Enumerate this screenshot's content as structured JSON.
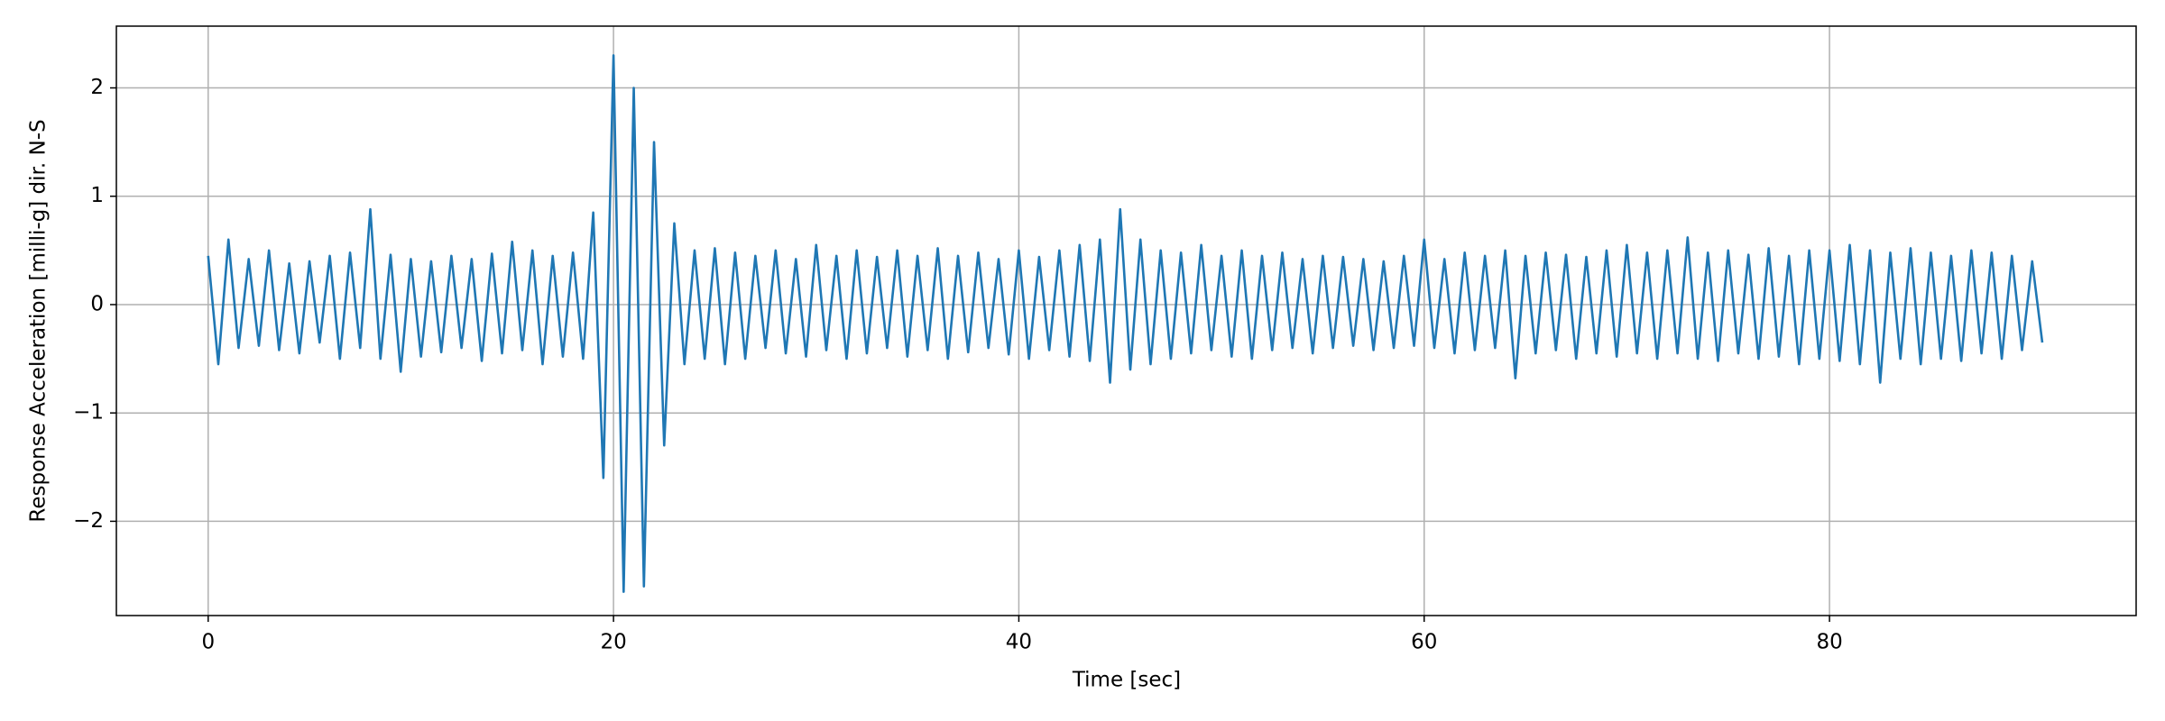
{
  "chart_data": {
    "type": "line",
    "xlabel": "Time [sec]",
    "ylabel": "Response Acceleration [milli-g] dir. N-S",
    "x": [
      0,
      0.5,
      1,
      1.5,
      2,
      2.5,
      3,
      3.5,
      4,
      4.5,
      5,
      5.5,
      6,
      6.5,
      7,
      7.5,
      8,
      8.5,
      9,
      9.5,
      10,
      10.5,
      11,
      11.5,
      12,
      12.5,
      13,
      13.5,
      14,
      14.5,
      15,
      15.5,
      16,
      16.5,
      17,
      17.5,
      18,
      18.5,
      19,
      19.5,
      20,
      20.5,
      21,
      21.5,
      22,
      22.5,
      23,
      23.5,
      24,
      24.5,
      25,
      25.5,
      26,
      26.5,
      27,
      27.5,
      28,
      28.5,
      29,
      29.5,
      30,
      30.5,
      31,
      31.5,
      32,
      32.5,
      33,
      33.5,
      34,
      34.5,
      35,
      35.5,
      36,
      36.5,
      37,
      37.5,
      38,
      38.5,
      39,
      39.5,
      40,
      40.5,
      41,
      41.5,
      42,
      42.5,
      43,
      43.5,
      44,
      44.5,
      45,
      45.5,
      46,
      46.5,
      47,
      47.5,
      48,
      48.5,
      49,
      49.5,
      50,
      50.5,
      51,
      51.5,
      52,
      52.5,
      53,
      53.5,
      54,
      54.5,
      55,
      55.5,
      56,
      56.5,
      57,
      57.5,
      58,
      58.5,
      59,
      59.5,
      60,
      60.5,
      61,
      61.5,
      62,
      62.5,
      63,
      63.5,
      64,
      64.5,
      65,
      65.5,
      66,
      66.5,
      67,
      67.5,
      68,
      68.5,
      69,
      69.5,
      70,
      70.5,
      71,
      71.5,
      72,
      72.5,
      73,
      73.5,
      74,
      74.5,
      75,
      75.5,
      76,
      76.5,
      77,
      77.5,
      78,
      78.5,
      79,
      79.5,
      80,
      80.5,
      81,
      81.5,
      82,
      82.5,
      83,
      83.5,
      84,
      84.5,
      85,
      85.5,
      86,
      86.5,
      87,
      87.5,
      88,
      88.5,
      89,
      89.5,
      90,
      90.5
    ],
    "series": [
      {
        "color": "#1f77b4",
        "values": [
          0.45,
          -0.55,
          0.6,
          -0.4,
          0.42,
          -0.38,
          0.5,
          -0.42,
          0.38,
          -0.45,
          0.4,
          -0.35,
          0.45,
          -0.5,
          0.48,
          -0.4,
          0.88,
          -0.5,
          0.46,
          -0.62,
          0.42,
          -0.48,
          0.4,
          -0.44,
          0.45,
          -0.4,
          0.42,
          -0.52,
          0.47,
          -0.45,
          0.58,
          -0.42,
          0.5,
          -0.55,
          0.45,
          -0.48,
          0.48,
          -0.5,
          0.85,
          -1.6,
          2.3,
          -2.65,
          2.0,
          -2.6,
          1.5,
          -1.3,
          0.75,
          -0.55,
          0.5,
          -0.5,
          0.52,
          -0.55,
          0.48,
          -0.5,
          0.45,
          -0.4,
          0.5,
          -0.45,
          0.42,
          -0.48,
          0.55,
          -0.42,
          0.45,
          -0.5,
          0.5,
          -0.45,
          0.44,
          -0.4,
          0.5,
          -0.48,
          0.45,
          -0.42,
          0.52,
          -0.5,
          0.45,
          -0.44,
          0.48,
          -0.4,
          0.42,
          -0.46,
          0.5,
          -0.5,
          0.44,
          -0.42,
          0.5,
          -0.48,
          0.55,
          -0.52,
          0.6,
          -0.72,
          0.88,
          -0.6,
          0.6,
          -0.55,
          0.5,
          -0.5,
          0.48,
          -0.45,
          0.55,
          -0.42,
          0.45,
          -0.48,
          0.5,
          -0.5,
          0.45,
          -0.42,
          0.48,
          -0.4,
          0.42,
          -0.45,
          0.45,
          -0.4,
          0.44,
          -0.38,
          0.42,
          -0.42,
          0.4,
          -0.4,
          0.45,
          -0.38,
          0.6,
          -0.4,
          0.42,
          -0.45,
          0.48,
          -0.42,
          0.45,
          -0.4,
          0.5,
          -0.68,
          0.45,
          -0.45,
          0.48,
          -0.42,
          0.46,
          -0.5,
          0.44,
          -0.45,
          0.5,
          -0.48,
          0.55,
          -0.45,
          0.48,
          -0.5,
          0.5,
          -0.45,
          0.62,
          -0.5,
          0.48,
          -0.52,
          0.5,
          -0.45,
          0.46,
          -0.5,
          0.52,
          -0.48,
          0.45,
          -0.55,
          0.5,
          -0.5,
          0.5,
          -0.52,
          0.55,
          -0.55,
          0.5,
          -0.72,
          0.48,
          -0.5,
          0.52,
          -0.55,
          0.48,
          -0.5,
          0.45,
          -0.52,
          0.5,
          -0.45,
          0.48,
          -0.5,
          0.45,
          -0.42,
          0.4,
          -0.35
        ]
      }
    ],
    "xlim": [
      -4.53,
      95.13
    ],
    "ylim": [
      -2.87,
      2.57
    ],
    "xticks": [
      0,
      20,
      40,
      60,
      80
    ],
    "yticks": [
      {
        "value": -2,
        "label": "−2"
      },
      {
        "value": -1,
        "label": "−1"
      },
      0,
      1,
      2
    ],
    "grid": true
  }
}
